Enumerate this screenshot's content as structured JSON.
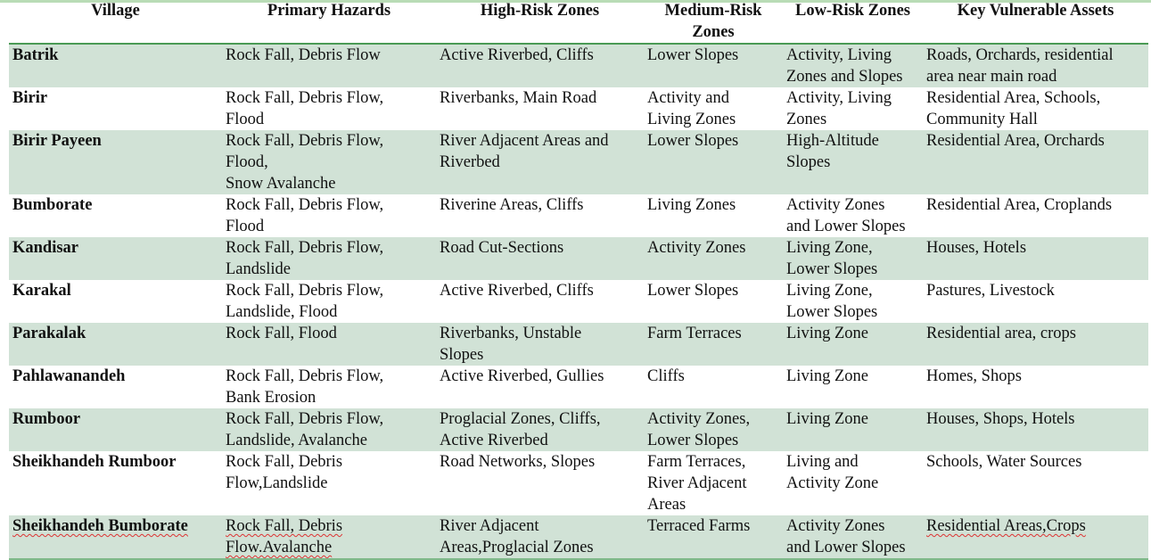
{
  "headers": [
    "Village",
    "Primary Hazards",
    "High-Risk Zones",
    "Medium-Risk\nZones",
    "Low-Risk Zones",
    "Key Vulnerable Assets"
  ],
  "rows": [
    [
      "Batrik",
      "Rock Fall, Debris Flow",
      "Active Riverbed, Cliffs",
      "Lower Slopes",
      "Activity, Living\nZones and Slopes",
      "Roads, Orchards, residential\narea near main road"
    ],
    [
      "Birir",
      "Rock Fall, Debris Flow,\nFlood",
      "Riverbanks, Main Road",
      "Activity and\nLiving Zones",
      "Activity, Living\nZones",
      "Residential Area, Schools,\nCommunity Hall"
    ],
    [
      "Birir Payeen",
      "Rock Fall, Debris Flow,\nFlood,\nSnow Avalanche",
      "River Adjacent Areas and\nRiverbed",
      "Lower Slopes",
      "High-Altitude\nSlopes",
      "Residential Area, Orchards"
    ],
    [
      "Bumborate",
      "Rock Fall, Debris Flow,\nFlood",
      "Riverine Areas, Cliffs",
      "Living Zones",
      "Activity Zones\nand Lower Slopes",
      "Residential Area, Croplands"
    ],
    [
      "Kandisar",
      "Rock Fall, Debris Flow,\nLandslide",
      "Road Cut-Sections",
      "Activity Zones",
      "Living Zone,\nLower Slopes",
      "Houses, Hotels"
    ],
    [
      "Karakal",
      "Rock Fall, Debris Flow,\nLandslide, Flood",
      "Active Riverbed, Cliffs",
      " Lower Slopes",
      "Living Zone,\nLower Slopes",
      "Pastures, Livestock"
    ],
    [
      "Parakalak",
      "Rock Fall, Flood",
      "Riverbanks, Unstable\nSlopes",
      "Farm Terraces",
      "Living Zone",
      "Residential area, crops"
    ],
    [
      "Pahlawanandeh",
      "Rock Fall, Debris Flow,\nBank Erosion",
      "Active Riverbed, Gullies",
      " Cliffs",
      "Living Zone",
      "Homes, Shops"
    ],
    [
      "Rumboor",
      "Rock Fall, Debris Flow,\nLandslide, Avalanche",
      "Proglacial Zones, Cliffs,\nActive Riverbed",
      "Activity Zones,\nLower Slopes",
      "Living Zone",
      "Houses, Shops, Hotels"
    ],
    [
      "Sheikhandeh Rumboor",
      "Rock Fall, Debris\nFlow,Landslide",
      "Road Networks, Slopes",
      "Farm Terraces,\nRiver Adjacent\nAreas",
      "Living and\nActivity Zone",
      "Schools, Water Sources"
    ],
    [
      "Sheikhandeh Bumborate",
      "Rock Fall, Debris\nFlow.Avalanche",
      "River Adjacent\nAreas,Proglacial Zones",
      "Terraced Farms",
      "Activity Zones\nand Lower Slopes",
      "Residential Areas,Crops"
    ]
  ],
  "colors": {
    "row_shade": "#d1e2d6",
    "header_rule": "#4a9a55"
  }
}
